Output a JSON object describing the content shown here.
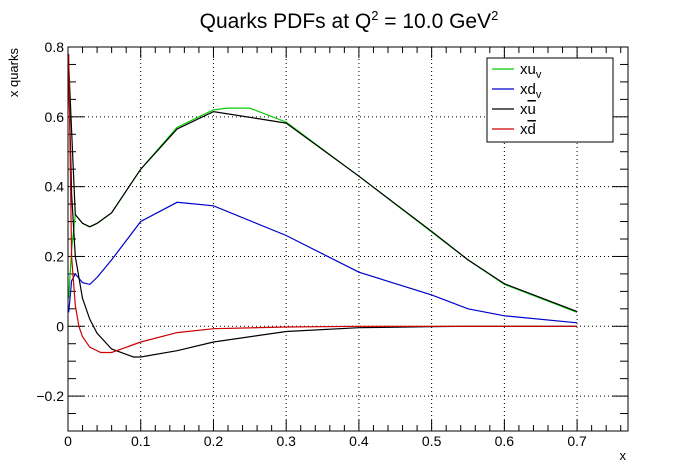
{
  "chart_data": {
    "type": "line",
    "title": "Quarks PDFs at Q",
    "title_sup": "2",
    "title_tail": " = 10.0 GeV",
    "title_unit_sup": "2",
    "xlabel": "x",
    "ylabel": "x quarks",
    "xlim": [
      0,
      0.77
    ],
    "ylim": [
      -0.3,
      0.8
    ],
    "xticks": [
      0,
      0.1,
      0.2,
      0.3,
      0.4,
      0.5,
      0.6,
      0.7
    ],
    "xtick_labels": [
      "0",
      "0.1",
      "0.2",
      "0.3",
      "0.4",
      "0.5",
      "0.6",
      "0.7"
    ],
    "yticks": [
      -0.2,
      0,
      0.2,
      0.4,
      0.6,
      0.8
    ],
    "ytick_labels": [
      "−0.2",
      "0",
      "0.2",
      "0.4",
      "0.6",
      "0.8"
    ],
    "grid": true,
    "grid_style": "dotted",
    "legend_position": "top-right",
    "series": [
      {
        "name": "xu",
        "name_sub": "v",
        "name_overline": false,
        "color": "#00cc00",
        "x": [
          0.001,
          0.005,
          0.01,
          0.02,
          0.03,
          0.04,
          0.06,
          0.1,
          0.15,
          0.2,
          0.22,
          0.25,
          0.3,
          0.4,
          0.5,
          0.55,
          0.6,
          0.7
        ],
        "y": [
          0.08,
          0.22,
          0.32,
          0.295,
          0.285,
          0.295,
          0.325,
          0.45,
          0.57,
          0.62,
          0.625,
          0.625,
          0.585,
          0.43,
          0.27,
          0.19,
          0.12,
          0.04
        ]
      },
      {
        "name": "xd",
        "name_sub": "v",
        "name_overline": false,
        "color": "#0000cc",
        "x": [
          0.001,
          0.005,
          0.01,
          0.02,
          0.03,
          0.04,
          0.06,
          0.1,
          0.15,
          0.2,
          0.3,
          0.4,
          0.5,
          0.55,
          0.6,
          0.7
        ],
        "y": [
          0.04,
          0.13,
          0.15,
          0.125,
          0.12,
          0.14,
          0.19,
          0.3,
          0.355,
          0.345,
          0.26,
          0.155,
          0.09,
          0.05,
          0.03,
          0.01
        ]
      },
      {
        "name": "xu",
        "name_sub": "",
        "name_overline": true,
        "color": "#000000",
        "x": [
          0.001,
          0.005,
          0.01,
          0.02,
          0.03,
          0.04,
          0.06,
          0.09,
          0.1,
          0.15,
          0.2,
          0.3,
          0.4,
          0.5,
          0.55,
          0.6,
          0.7
        ],
        "y": [
          0.72,
          0.38,
          0.2,
          0.08,
          0.02,
          -0.02,
          -0.065,
          -0.088,
          -0.088,
          -0.07,
          -0.045,
          -0.015,
          -0.004,
          -0.001,
          0.0,
          0.0,
          0.0
        ],
        "upper_x": [
          0.001,
          0.01,
          0.02,
          0.03,
          0.04,
          0.06,
          0.1,
          0.15,
          0.2,
          0.3,
          0.4,
          0.5,
          0.55,
          0.6,
          0.7
        ],
        "upper_y": [
          0.75,
          0.32,
          0.295,
          0.285,
          0.295,
          0.325,
          0.45,
          0.565,
          0.615,
          0.582,
          0.43,
          0.272,
          0.19,
          0.122,
          0.042
        ]
      },
      {
        "name": "xd",
        "name_sub": "",
        "name_overline": true,
        "color": "#cc0000",
        "x": [
          0.001,
          0.005,
          0.01,
          0.015,
          0.02,
          0.03,
          0.045,
          0.06,
          0.1,
          0.15,
          0.2,
          0.3,
          0.4,
          0.48,
          0.55,
          0.6,
          0.7
        ],
        "y": [
          0.78,
          0.2,
          0.06,
          0.0,
          -0.03,
          -0.06,
          -0.075,
          -0.075,
          -0.045,
          -0.018,
          -0.007,
          -0.002,
          0.0,
          0.0,
          0.0,
          0.0,
          0.0
        ]
      }
    ]
  }
}
